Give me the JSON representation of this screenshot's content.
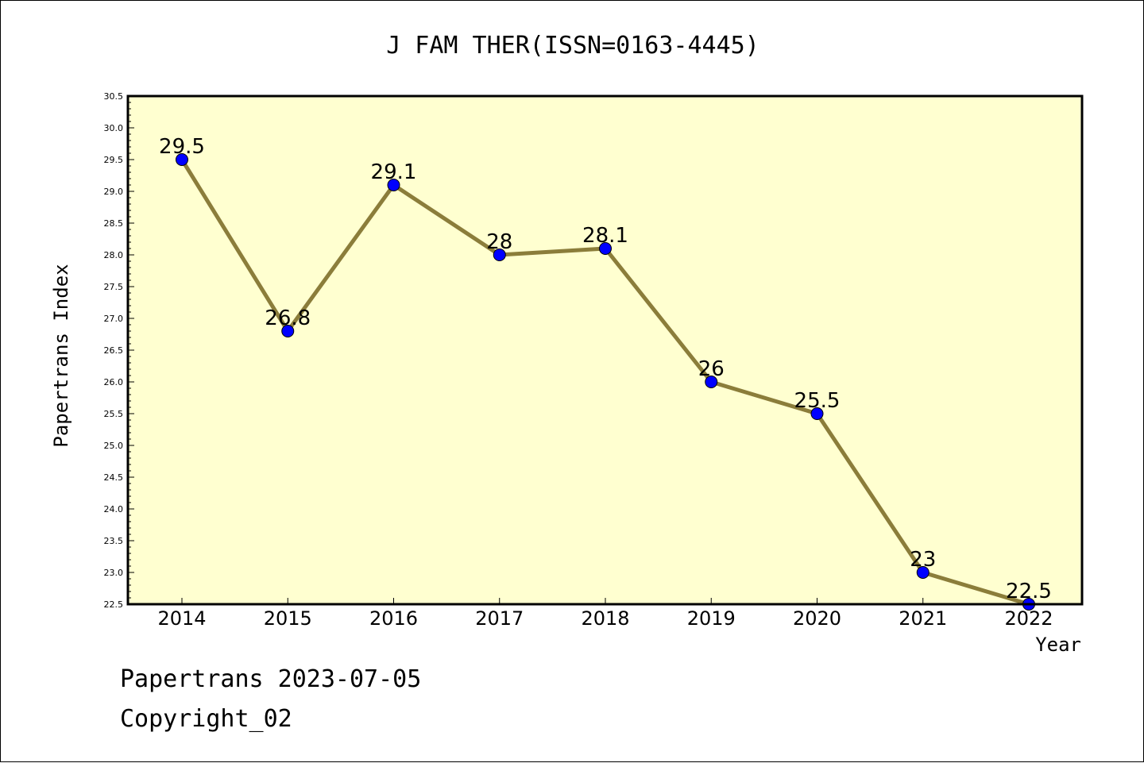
{
  "chart_data": {
    "type": "line",
    "title": "J FAM THER(ISSN=0163-4445)",
    "xlabel": "Year",
    "ylabel": "Papertrans Index",
    "categories": [
      "2014",
      "2015",
      "2016",
      "2017",
      "2018",
      "2019",
      "2020",
      "2021",
      "2022"
    ],
    "series": [
      {
        "values": [
          29.5,
          26.8,
          29.1,
          28,
          28.1,
          26,
          25.5,
          23,
          22.5
        ],
        "labels": [
          "29.5",
          "26.8",
          "29.1",
          "28",
          "28.1",
          "26",
          "25.5",
          "23",
          "22.5"
        ]
      }
    ],
    "ylim": [
      22.5,
      30.5
    ],
    "yticks": [
      "22.5",
      "23.0",
      "23.5",
      "24.0",
      "24.5",
      "25.0",
      "25.5",
      "26.0",
      "26.5",
      "27.0",
      "27.5",
      "28.0",
      "28.5",
      "29.0",
      "29.5",
      "30.0",
      "30.5"
    ],
    "grid": false,
    "colors": {
      "plot_background": "#ffffd0",
      "line": "#8b7d3a",
      "marker": "#0000ff"
    }
  },
  "footer": {
    "line1": "Papertrans 2023-07-05",
    "line2": "Copyright_02"
  }
}
